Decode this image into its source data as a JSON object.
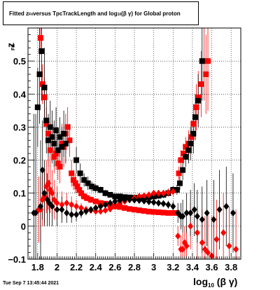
{
  "title": {
    "prefix": "Fitted  z",
    "prefix_sub": "Fit",
    "middle": "  versus TpcTrackLength and log",
    "middle_sub": "10",
    "suffix": " (β γ) for Global proton"
  },
  "footer": {
    "date": "Tue Sep  7 13:45:44 2021"
  },
  "chart_data": {
    "type": "scatter",
    "title": "Fitted zFit versus TpcTrackLength and log10(β γ) for Global proton",
    "xlabel": "log10 (β γ)",
    "ylabel": "zFit",
    "xlabel_parts": {
      "main": "log",
      "sub": "10",
      "tail": " (β γ)"
    },
    "ylabel_parts": {
      "main": "z",
      "sub": "Fit"
    },
    "xlim": [
      1.7,
      3.9
    ],
    "ylim": [
      -0.1,
      0.6
    ],
    "x_ticks": [
      1.8,
      2,
      2.2,
      2.4,
      2.6,
      2.8,
      3,
      3.2,
      3.4,
      3.6,
      3.8
    ],
    "x_tick_labels": [
      "1.8",
      "2",
      "2.2",
      "2.4",
      "2.6",
      "2.8",
      "3",
      "3.2",
      "3.4",
      "3.6",
      "3.8"
    ],
    "y_ticks": [
      -0.1,
      0,
      0.1,
      0.2,
      0.3,
      0.4,
      0.5
    ],
    "y_tick_labels": [
      "−0.1",
      "0",
      "0.1",
      "0.2",
      "0.3",
      "0.4",
      "0.5"
    ],
    "grid": true,
    "series": [
      {
        "color": "#ff0000",
        "marker": "square",
        "points": [
          [
            1.83,
            0.57,
            0.05
          ],
          [
            1.85,
            0.43,
            0.06
          ],
          [
            1.87,
            0.39,
            0.06
          ],
          [
            1.89,
            0.31,
            0.05
          ],
          [
            1.91,
            0.28,
            0.05
          ],
          [
            1.93,
            0.23,
            0.05
          ],
          [
            1.95,
            0.27,
            0.05
          ],
          [
            1.97,
            0.21,
            0.05
          ],
          [
            1.99,
            0.22,
            0.05
          ],
          [
            2.01,
            0.19,
            0.05
          ],
          [
            2.03,
            0.18,
            0.05
          ],
          [
            2.05,
            0.25,
            0.06
          ],
          [
            2.07,
            0.24,
            0.06
          ],
          [
            2.09,
            0.28,
            0.06
          ],
          [
            2.11,
            0.3,
            0.06
          ],
          [
            2.13,
            0.26,
            0.05
          ],
          [
            2.15,
            0.16,
            0.04
          ],
          [
            2.17,
            0.14,
            0.03
          ],
          [
            2.19,
            0.13,
            0.03
          ],
          [
            2.21,
            0.12,
            0.02
          ],
          [
            2.23,
            0.11,
            0.02
          ],
          [
            2.25,
            0.1,
            0.015
          ],
          [
            2.28,
            0.09,
            0.01
          ],
          [
            2.31,
            0.085,
            0.01
          ],
          [
            2.35,
            0.08,
            0.01
          ],
          [
            2.4,
            0.075,
            0.008
          ],
          [
            2.45,
            0.07,
            0.008
          ],
          [
            2.5,
            0.068,
            0.006
          ],
          [
            2.55,
            0.064,
            0.006
          ],
          [
            2.6,
            0.06,
            0.005
          ],
          [
            2.65,
            0.058,
            0.005
          ],
          [
            2.7,
            0.055,
            0.005
          ],
          [
            2.75,
            0.052,
            0.005
          ],
          [
            2.8,
            0.05,
            0.005
          ],
          [
            2.85,
            0.048,
            0.005
          ],
          [
            2.9,
            0.046,
            0.005
          ],
          [
            2.95,
            0.044,
            0.005
          ],
          [
            3.0,
            0.043,
            0.005
          ],
          [
            3.05,
            0.042,
            0.006
          ],
          [
            3.1,
            0.041,
            0.006
          ],
          [
            3.15,
            0.04,
            0.007
          ],
          [
            3.2,
            0.04,
            0.008
          ],
          [
            3.24,
            0.04,
            0.009
          ],
          [
            3.26,
            0.16,
            0.02
          ],
          [
            3.28,
            0.2,
            0.03
          ],
          [
            3.31,
            0.22,
            0.03
          ],
          [
            3.33,
            0.24,
            0.03
          ],
          [
            3.36,
            0.25,
            0.04
          ],
          [
            3.39,
            0.27,
            0.05
          ],
          [
            3.41,
            0.31,
            0.06
          ],
          [
            3.44,
            0.36,
            0.07
          ],
          [
            3.46,
            0.39,
            0.08
          ],
          [
            3.49,
            0.43,
            0.1
          ],
          [
            3.52,
            0.5,
            0.12
          ],
          [
            3.54,
            0.46,
            0.12
          ],
          [
            3.56,
            0.5,
            0.15
          ]
        ]
      },
      {
        "color": "#000000",
        "marker": "square",
        "points": [
          [
            1.8,
            0.36,
            0.12
          ],
          [
            1.82,
            0.46,
            0.15
          ],
          [
            1.84,
            0.53,
            0.15
          ],
          [
            1.87,
            0.42,
            0.12
          ],
          [
            1.89,
            0.32,
            0.1
          ],
          [
            1.91,
            0.26,
            0.08
          ],
          [
            1.93,
            0.3,
            0.08
          ],
          [
            1.95,
            0.27,
            0.08
          ],
          [
            1.97,
            0.25,
            0.07
          ],
          [
            1.99,
            0.29,
            0.07
          ],
          [
            2.01,
            0.23,
            0.06
          ],
          [
            2.03,
            0.27,
            0.06
          ],
          [
            2.05,
            0.24,
            0.06
          ],
          [
            2.07,
            0.28,
            0.07
          ],
          [
            2.09,
            0.25,
            0.06
          ],
          [
            2.2,
            0.2,
            0.04
          ],
          [
            2.24,
            0.16,
            0.03
          ],
          [
            2.28,
            0.14,
            0.02
          ],
          [
            2.32,
            0.13,
            0.02
          ],
          [
            2.36,
            0.12,
            0.015
          ],
          [
            2.4,
            0.115,
            0.012
          ],
          [
            2.45,
            0.11,
            0.01
          ],
          [
            2.5,
            0.1,
            0.01
          ],
          [
            2.55,
            0.095,
            0.008
          ],
          [
            2.6,
            0.09,
            0.008
          ],
          [
            2.65,
            0.09,
            0.007
          ],
          [
            2.7,
            0.088,
            0.007
          ],
          [
            2.75,
            0.087,
            0.007
          ],
          [
            2.8,
            0.086,
            0.007
          ],
          [
            2.85,
            0.086,
            0.007
          ],
          [
            2.9,
            0.087,
            0.007
          ],
          [
            2.95,
            0.088,
            0.008
          ],
          [
            3.0,
            0.09,
            0.008
          ],
          [
            3.05,
            0.092,
            0.009
          ],
          [
            3.1,
            0.095,
            0.01
          ],
          [
            3.15,
            0.1,
            0.01
          ],
          [
            3.2,
            0.11,
            0.012
          ],
          [
            3.24,
            0.11,
            0.015
          ],
          [
            3.27,
            0.13,
            0.02
          ],
          [
            3.3,
            0.17,
            0.03
          ],
          [
            3.33,
            0.21,
            0.03
          ],
          [
            3.36,
            0.23,
            0.04
          ],
          [
            3.38,
            0.25,
            0.05
          ],
          [
            3.41,
            0.28,
            0.06
          ],
          [
            3.43,
            0.33,
            0.07
          ],
          [
            3.46,
            0.38,
            0.08
          ],
          [
            3.5,
            0.5,
            0.12
          ]
        ]
      },
      {
        "color": "#ff0000",
        "marker": "diamond",
        "points": [
          [
            1.81,
            0.05,
            0.1
          ],
          [
            1.83,
            0.05,
            0.1
          ],
          [
            1.85,
            0.08,
            0.08
          ],
          [
            1.87,
            0.09,
            0.08
          ],
          [
            1.89,
            0.12,
            0.08
          ],
          [
            1.91,
            0.13,
            0.08
          ],
          [
            1.93,
            0.11,
            0.07
          ],
          [
            1.95,
            0.1,
            0.07
          ],
          [
            1.97,
            0.08,
            0.06
          ],
          [
            2.0,
            0.07,
            0.05
          ],
          [
            2.05,
            0.065,
            0.04
          ],
          [
            2.1,
            0.07,
            0.03
          ],
          [
            2.15,
            0.065,
            0.025
          ],
          [
            2.2,
            0.06,
            0.02
          ],
          [
            2.25,
            0.055,
            0.015
          ],
          [
            2.3,
            0.05,
            0.012
          ],
          [
            2.35,
            0.048,
            0.01
          ],
          [
            2.4,
            0.045,
            0.01
          ],
          [
            2.45,
            0.045,
            0.008
          ],
          [
            2.5,
            0.048,
            0.008
          ],
          [
            2.55,
            0.052,
            0.008
          ],
          [
            2.6,
            0.06,
            0.008
          ],
          [
            2.65,
            0.07,
            0.008
          ],
          [
            2.7,
            0.075,
            0.008
          ],
          [
            2.75,
            0.08,
            0.008
          ],
          [
            2.8,
            0.085,
            0.008
          ],
          [
            2.85,
            0.09,
            0.008
          ],
          [
            2.9,
            0.092,
            0.008
          ],
          [
            2.95,
            0.095,
            0.008
          ],
          [
            3.0,
            0.1,
            0.008
          ],
          [
            3.05,
            0.1,
            0.009
          ],
          [
            3.1,
            0.1,
            0.01
          ],
          [
            3.15,
            0.102,
            0.012
          ],
          [
            3.2,
            0.105,
            0.015
          ],
          [
            3.25,
            -0.03,
            0.03
          ],
          [
            3.28,
            -0.07,
            0.04
          ],
          [
            3.3,
            -0.07,
            0.05
          ],
          [
            3.32,
            -0.05,
            0.05
          ],
          [
            3.34,
            -0.06,
            0.06
          ],
          [
            3.38,
            0.0,
            0.07
          ],
          [
            3.45,
            -0.02,
            0.08
          ],
          [
            3.5,
            -0.05,
            0.1
          ],
          [
            3.53,
            -0.07,
            0.1
          ],
          [
            3.56,
            -0.08,
            0.12
          ],
          [
            3.6,
            -0.09,
            0.12
          ],
          [
            3.65,
            -0.04,
            0.12
          ],
          [
            3.72,
            -0.02,
            0.12
          ],
          [
            3.78,
            -0.06,
            0.12
          ],
          [
            3.85,
            -0.07,
            0.12
          ]
        ]
      },
      {
        "color": "#000000",
        "marker": "diamond",
        "points": [
          [
            1.76,
            0.04,
            0.3
          ],
          [
            1.78,
            0.04,
            0.3
          ],
          [
            1.83,
            0.06,
            0.2
          ],
          [
            1.85,
            0.17,
            0.15
          ],
          [
            1.87,
            0.1,
            0.1
          ],
          [
            1.9,
            0.08,
            0.08
          ],
          [
            1.92,
            0.07,
            0.07
          ],
          [
            1.95,
            0.06,
            0.06
          ],
          [
            2.0,
            0.05,
            0.05
          ],
          [
            2.05,
            0.05,
            0.04
          ],
          [
            2.1,
            0.04,
            0.03
          ],
          [
            2.15,
            0.035,
            0.025
          ],
          [
            2.2,
            0.035,
            0.02
          ],
          [
            2.25,
            0.04,
            0.015
          ],
          [
            2.3,
            0.045,
            0.012
          ],
          [
            2.35,
            0.05,
            0.01
          ],
          [
            2.4,
            0.055,
            0.01
          ],
          [
            2.45,
            0.06,
            0.008
          ],
          [
            2.5,
            0.065,
            0.008
          ],
          [
            2.55,
            0.07,
            0.008
          ],
          [
            2.6,
            0.075,
            0.008
          ],
          [
            2.65,
            0.078,
            0.008
          ],
          [
            2.7,
            0.08,
            0.008
          ],
          [
            2.75,
            0.08,
            0.008
          ],
          [
            2.8,
            0.079,
            0.008
          ],
          [
            2.85,
            0.078,
            0.008
          ],
          [
            2.9,
            0.076,
            0.008
          ],
          [
            2.95,
            0.074,
            0.008
          ],
          [
            3.0,
            0.072,
            0.009
          ],
          [
            3.05,
            0.07,
            0.01
          ],
          [
            3.1,
            0.068,
            0.01
          ],
          [
            3.15,
            0.065,
            0.012
          ],
          [
            3.2,
            0.06,
            0.015
          ],
          [
            3.25,
            0.04,
            0.03
          ],
          [
            3.28,
            0.03,
            0.04
          ],
          [
            3.3,
            0.03,
            0.05
          ],
          [
            3.34,
            0.04,
            0.06
          ],
          [
            3.38,
            0.04,
            0.07
          ],
          [
            3.42,
            0.05,
            0.08
          ],
          [
            3.45,
            0.03,
            0.08
          ],
          [
            3.5,
            0.02,
            0.1
          ],
          [
            3.55,
            0.04,
            0.1
          ],
          [
            3.62,
            0.02,
            0.12
          ],
          [
            3.68,
            0.05,
            0.12
          ],
          [
            3.75,
            0.06,
            0.12
          ],
          [
            3.82,
            0.04,
            0.12
          ]
        ]
      }
    ]
  }
}
